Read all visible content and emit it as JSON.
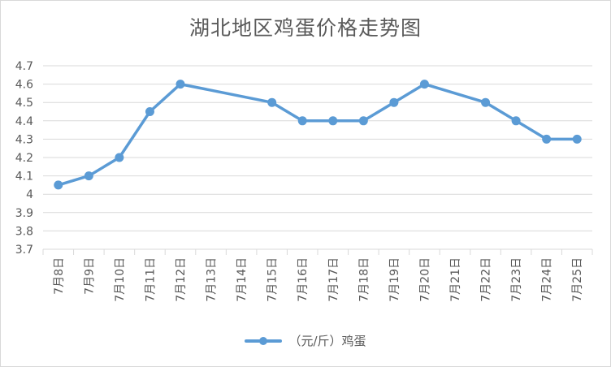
{
  "chart_data": {
    "type": "line",
    "title": "湖北地区鸡蛋价格走势图",
    "categories": [
      "7月8日",
      "7月9日",
      "7月10日",
      "7月11日",
      "7月12日",
      "7月13日",
      "7月14日",
      "7月15日",
      "7月16日",
      "7月17日",
      "7月18日",
      "7月19日",
      "7月20日",
      "7月21日",
      "7月22日",
      "7月23日",
      "7月24日",
      "7月25日"
    ],
    "series": [
      {
        "name": "（元/斤）鸡蛋",
        "color": "#5b9bd5",
        "values": [
          4.05,
          4.1,
          4.2,
          4.45,
          4.6,
          null,
          null,
          4.5,
          4.4,
          4.4,
          4.4,
          4.5,
          4.6,
          null,
          4.5,
          4.4,
          4.3,
          4.3
        ]
      }
    ],
    "ylim": [
      3.7,
      4.7
    ],
    "yticks": [
      "3.7",
      "3.8",
      "3.9",
      "4",
      "4.1",
      "4.2",
      "4.3",
      "4.4",
      "4.5",
      "4.6",
      "4.7"
    ],
    "grid": true,
    "legend_position": "bottom"
  }
}
